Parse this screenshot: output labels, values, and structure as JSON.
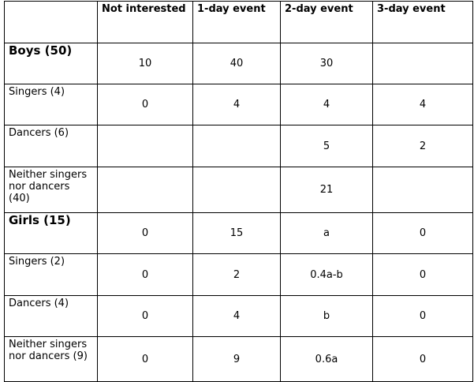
{
  "table": {
    "headers": [
      "",
      "Not interested",
      "1-day event",
      "2-day event",
      "3-day event"
    ],
    "rows": [
      {
        "label": "Boys (50)",
        "group": true,
        "cells": [
          "10",
          "40",
          "30",
          ""
        ]
      },
      {
        "label": "Singers (4)",
        "group": false,
        "cells": [
          "0",
          "4",
          "4",
          "4"
        ]
      },
      {
        "label": "Dancers (6)",
        "group": false,
        "cells": [
          "",
          "",
          "5",
          "2"
        ]
      },
      {
        "label": "Neither singers nor dancers (40)",
        "group": false,
        "cells": [
          "",
          "",
          "21",
          ""
        ]
      },
      {
        "label": "Girls (15)",
        "group": true,
        "cells": [
          "0",
          "15",
          "a",
          "0"
        ]
      },
      {
        "label": "Singers (2)",
        "group": false,
        "cells": [
          "0",
          "2",
          "0.4a-b",
          "0"
        ]
      },
      {
        "label": "Dancers (4)",
        "group": false,
        "cells": [
          "0",
          "4",
          "b",
          "0"
        ]
      },
      {
        "label": "Neither singers nor dancers (9)",
        "group": false,
        "cells": [
          "0",
          "9",
          "0.6a",
          "0"
        ]
      }
    ]
  }
}
